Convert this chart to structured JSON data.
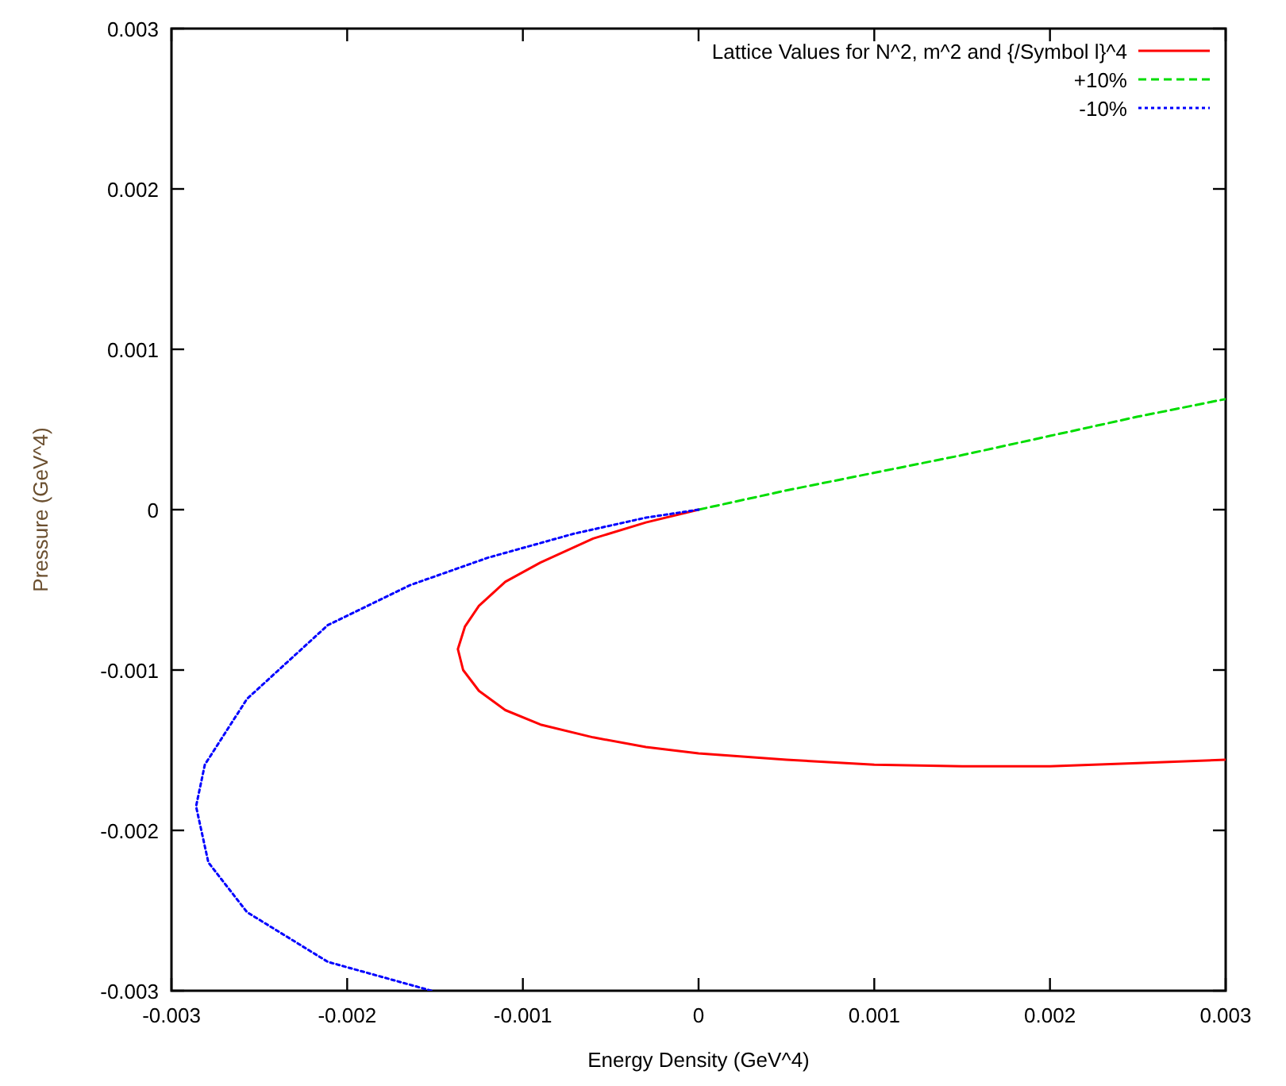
{
  "chart_data": {
    "type": "line",
    "xlabel": "Energy Density (GeV^4)",
    "ylabel": "Pressure (GeV^4)",
    "xlim": [
      -0.003,
      0.003
    ],
    "ylim": [
      -0.003,
      0.003
    ],
    "xticks": [
      -0.003,
      -0.002,
      -0.001,
      0,
      0.001,
      0.002,
      0.003
    ],
    "yticks": [
      -0.003,
      -0.002,
      -0.001,
      0,
      0.001,
      0.002,
      0.003
    ],
    "grid": false,
    "legend": "top right",
    "marker": "none",
    "series": [
      {
        "name": "Lattice Values for N^2, m^2 and {/Symbol l}^4",
        "color": "#ff0000",
        "line_style": "solid",
        "x": [
          0,
          -0.0003,
          -0.0006,
          -0.0009,
          -0.0011,
          -0.00125,
          -0.00133,
          -0.00137,
          -0.00134,
          -0.00125,
          -0.0011,
          -0.0009,
          -0.0006,
          -0.0003,
          0,
          0.0005,
          0.001,
          0.0015,
          0.002,
          0.0025,
          0.003
        ],
        "values": [
          0,
          -8e-05,
          -0.00018,
          -0.00033,
          -0.00045,
          -0.0006,
          -0.00073,
          -0.00087,
          -0.001,
          -0.00113,
          -0.00125,
          -0.00134,
          -0.00142,
          -0.00148,
          -0.00152,
          -0.00156,
          -0.00159,
          -0.0016,
          -0.0016,
          -0.00158,
          -0.00156
        ]
      },
      {
        "name": "+10%",
        "color": "#00dd00",
        "line_style": "dashed",
        "x": [
          0,
          0.0005,
          0.001,
          0.0015,
          0.002,
          0.0025,
          0.003
        ],
        "values": [
          0,
          0.00012,
          0.00023,
          0.00034,
          0.00046,
          0.00058,
          0.00069
        ]
      },
      {
        "name": "-10%",
        "color": "#0000ff",
        "line_style": "dotted",
        "x": [
          0,
          -0.0003,
          -0.00071,
          -0.0012,
          -0.00164,
          -0.00211,
          -0.00257,
          -0.00281,
          -0.00286,
          -0.00279,
          -0.00257,
          -0.00211,
          -0.00152
        ],
        "values": [
          0,
          -5e-05,
          -0.00015,
          -0.0003,
          -0.00047,
          -0.00072,
          -0.00118,
          -0.00159,
          -0.00185,
          -0.0022,
          -0.00251,
          -0.00282,
          -0.003
        ]
      }
    ]
  }
}
